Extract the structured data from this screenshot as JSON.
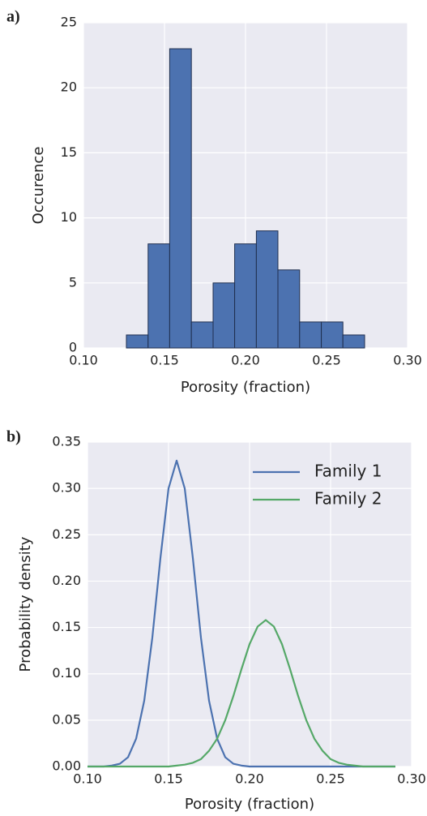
{
  "chart_data": [
    {
      "type": "histogram",
      "panel_label": "a)",
      "xlabel": "Porosity (fraction)",
      "ylabel": "Occurence",
      "bins": [
        0.1265,
        0.1399,
        0.1532,
        0.1666,
        0.18,
        0.1933,
        0.2067,
        0.22,
        0.2334,
        0.2468,
        0.2601,
        0.2735
      ],
      "counts": [
        1,
        8,
        23,
        2,
        5,
        8,
        9,
        6,
        2,
        2,
        1
      ],
      "color": "#4c72b0",
      "edgecolor": "#1f2f4f",
      "xlim": [
        0.1,
        0.3
      ],
      "xticks": [
        {
          "value": 0.1,
          "label": "0.10"
        },
        {
          "value": 0.15,
          "label": "0.15"
        },
        {
          "value": 0.2,
          "label": "0.20"
        },
        {
          "value": 0.25,
          "label": "0.25"
        },
        {
          "value": 0.3,
          "label": "0.30"
        }
      ],
      "ylim": [
        0,
        25
      ],
      "yticks": [
        0,
        5,
        10,
        15,
        20,
        25
      ],
      "grid": true
    },
    {
      "type": "line",
      "panel_label": "b)",
      "xlabel": "Porosity (fraction)",
      "ylabel": "Probability density",
      "legend": "upper right",
      "x": [
        0.1,
        0.105,
        0.11,
        0.115,
        0.12,
        0.125,
        0.13,
        0.135,
        0.14,
        0.145,
        0.15,
        0.155,
        0.16,
        0.165,
        0.17,
        0.175,
        0.18,
        0.185,
        0.19,
        0.195,
        0.2,
        0.205,
        0.21,
        0.215,
        0.22,
        0.225,
        0.23,
        0.235,
        0.24,
        0.245,
        0.25,
        0.255,
        0.26,
        0.265,
        0.27,
        0.275,
        0.28,
        0.285,
        0.29
      ],
      "series": [
        {
          "name": "Family 1",
          "color": "#4c72b0",
          "values": [
            0,
            0,
            0,
            0.001,
            0.003,
            0.01,
            0.03,
            0.071,
            0.139,
            0.225,
            0.3,
            0.33,
            0.3,
            0.225,
            0.139,
            0.071,
            0.03,
            0.01,
            0.003,
            0.001,
            0,
            0,
            0,
            0,
            0,
            0,
            0,
            0,
            0,
            0,
            0,
            0,
            0,
            0,
            0,
            0,
            0,
            0,
            0
          ]
        },
        {
          "name": "Family 2",
          "color": "#55a868",
          "values": [
            0,
            0,
            0,
            0,
            0,
            0,
            0,
            0,
            0,
            0,
            0,
            0.001,
            0.002,
            0.004,
            0.008,
            0.017,
            0.03,
            0.05,
            0.076,
            0.105,
            0.132,
            0.151,
            0.158,
            0.151,
            0.132,
            0.105,
            0.076,
            0.05,
            0.03,
            0.017,
            0.008,
            0.004,
            0.002,
            0.001,
            0,
            0,
            0,
            0,
            0
          ]
        }
      ],
      "xlim": [
        0.1,
        0.3
      ],
      "xticks": [
        {
          "value": 0.1,
          "label": "0.10"
        },
        {
          "value": 0.15,
          "label": "0.15"
        },
        {
          "value": 0.2,
          "label": "0.20"
        },
        {
          "value": 0.25,
          "label": "0.25"
        },
        {
          "value": 0.3,
          "label": "0.30"
        }
      ],
      "ylim": [
        0,
        0.35
      ],
      "yticks": [
        {
          "value": 0,
          "label": "0.00"
        },
        {
          "value": 0.05,
          "label": "0.05"
        },
        {
          "value": 0.1,
          "label": "0.10"
        },
        {
          "value": 0.15,
          "label": "0.15"
        },
        {
          "value": 0.2,
          "label": "0.20"
        },
        {
          "value": 0.25,
          "label": "0.25"
        },
        {
          "value": 0.3,
          "label": "0.30"
        },
        {
          "value": 0.35,
          "label": "0.35"
        }
      ],
      "grid": true
    }
  ]
}
